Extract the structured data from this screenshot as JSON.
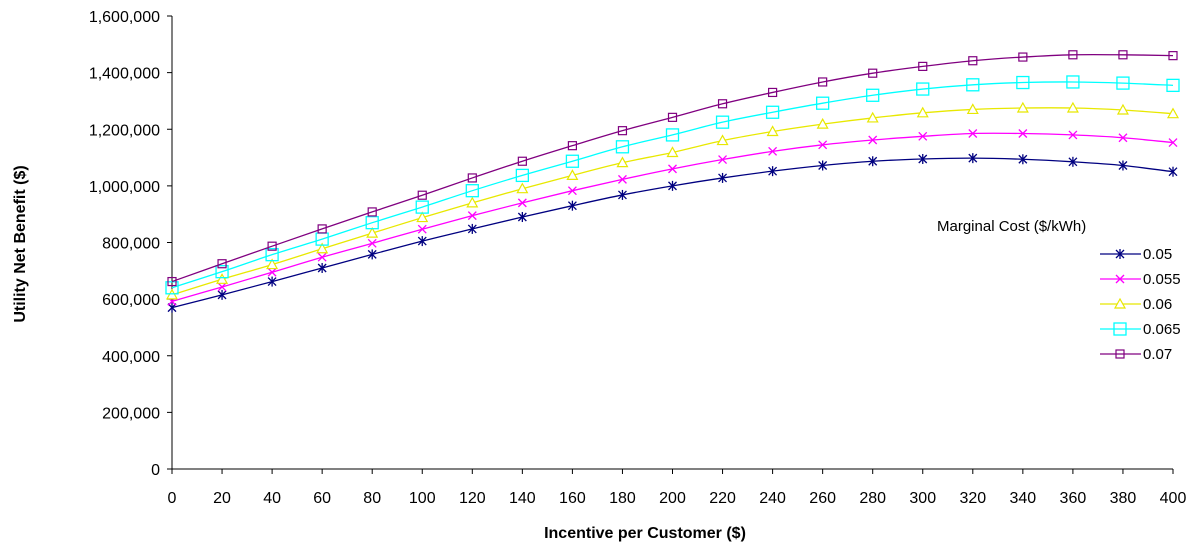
{
  "chart_data": {
    "type": "line",
    "title": "",
    "xlabel": "Incentive per Customer ($)",
    "ylabel": "Utility Net Benefit ($)",
    "xlim": [
      0,
      400
    ],
    "ylim": [
      0,
      1600000
    ],
    "x_ticks": [
      "0",
      "20",
      "40",
      "60",
      "80",
      "100",
      "120",
      "140",
      "160",
      "180",
      "200",
      "220",
      "240",
      "260",
      "280",
      "300",
      "320",
      "340",
      "360",
      "380",
      "400"
    ],
    "y_ticks": [
      "0",
      "200,000",
      "400,000",
      "600,000",
      "800,000",
      "1,000,000",
      "1,200,000",
      "1,400,000",
      "1,600,000"
    ],
    "grid": false,
    "legend": {
      "title": "Marginal Cost ($/kWh)",
      "position": "right"
    },
    "x": [
      0,
      20,
      40,
      60,
      80,
      100,
      120,
      140,
      160,
      180,
      200,
      220,
      240,
      260,
      280,
      300,
      320,
      340,
      360,
      380,
      400
    ],
    "series": [
      {
        "name": "0.05",
        "color": "#000080",
        "marker": "asterisk",
        "values": [
          570000,
          615000,
          662000,
          710000,
          758000,
          805000,
          848000,
          890000,
          930000,
          968000,
          1000000,
          1028000,
          1052000,
          1072000,
          1087000,
          1095000,
          1098000,
          1094000,
          1085000,
          1072000,
          1050000
        ]
      },
      {
        "name": "0.055",
        "color": "#FF00FF",
        "marker": "x",
        "values": [
          592000,
          643000,
          695000,
          748000,
          797000,
          847000,
          895000,
          940000,
          983000,
          1023000,
          1060000,
          1093000,
          1122000,
          1145000,
          1162000,
          1175000,
          1185000,
          1185000,
          1180000,
          1170000,
          1153000
        ]
      },
      {
        "name": "0.06",
        "color": "#E8E800",
        "marker": "triangle",
        "values": [
          615000,
          670000,
          722000,
          778000,
          833000,
          888000,
          940000,
          990000,
          1037000,
          1082000,
          1118000,
          1160000,
          1192000,
          1218000,
          1240000,
          1258000,
          1270000,
          1275000,
          1275000,
          1268000,
          1255000
        ]
      },
      {
        "name": "0.065",
        "color": "#00FFFF",
        "marker": "square",
        "values": [
          640000,
          697000,
          757000,
          812000,
          870000,
          925000,
          983000,
          1037000,
          1087000,
          1138000,
          1180000,
          1225000,
          1260000,
          1292000,
          1320000,
          1342000,
          1357000,
          1365000,
          1367000,
          1363000,
          1355000
        ]
      },
      {
        "name": "0.07",
        "color": "#800080",
        "marker": "square-small",
        "values": [
          662000,
          725000,
          787000,
          848000,
          908000,
          967000,
          1028000,
          1087000,
          1142000,
          1195000,
          1242000,
          1290000,
          1330000,
          1367000,
          1398000,
          1422000,
          1442000,
          1455000,
          1463000,
          1463000,
          1460000
        ]
      }
    ]
  }
}
